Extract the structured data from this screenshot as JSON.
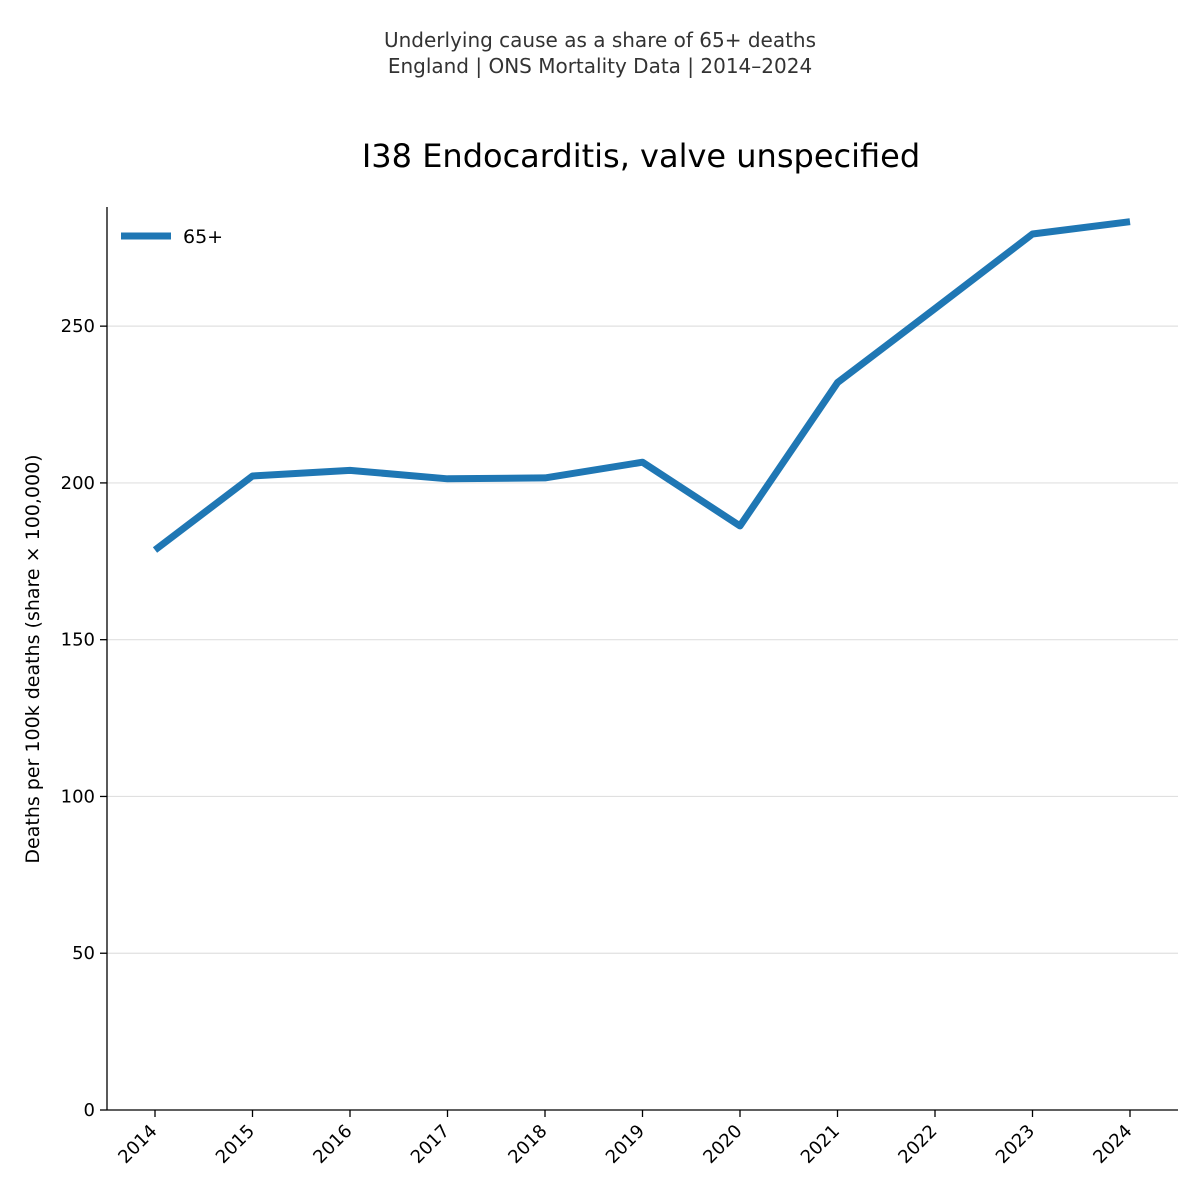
{
  "header": {
    "suptitle_line1": "Underlying cause as a share of 65+ deaths",
    "suptitle_line2": "England | ONS Mortality Data | 2014–2024"
  },
  "chart_data": {
    "type": "line",
    "title": "I38 Endocarditis, valve unspecified",
    "xlabel": "",
    "ylabel": "Deaths per 100k deaths (share × 100,000)",
    "categories": [
      "2014",
      "2015",
      "2016",
      "2017",
      "2018",
      "2019",
      "2020",
      "2021",
      "2022",
      "2023",
      "2024"
    ],
    "series": [
      {
        "name": "65+",
        "color": "#1f77b4",
        "values": [
          178.6,
          202.2,
          204.0,
          201.3,
          201.6,
          206.6,
          186.3,
          232.0,
          255.6,
          279.4,
          283.3
        ]
      }
    ],
    "ylim": [
      0,
      288
    ],
    "yticks": [
      0,
      50,
      100,
      150,
      200,
      250
    ],
    "grid": "horizontal",
    "legend_position": "top-left"
  }
}
